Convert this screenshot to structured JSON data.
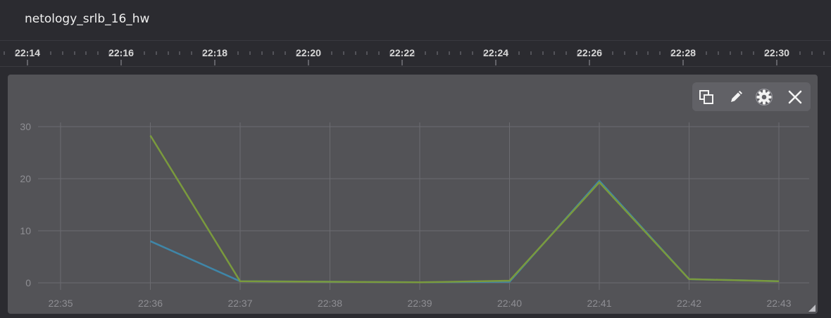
{
  "app": {
    "title": "netology_srlb_16_hw"
  },
  "timeline": {
    "ticks": [
      "22:14",
      "22:16",
      "22:18",
      "22:20",
      "22:22",
      "22:24",
      "22:26",
      "22:28",
      "22:30"
    ]
  },
  "toolbar": {
    "buttons": [
      {
        "name": "duplicate-icon"
      },
      {
        "name": "edit-icon"
      },
      {
        "name": "settings-icon"
      },
      {
        "name": "close-icon"
      }
    ]
  },
  "colors": {
    "series_a": "#7a9a3d",
    "series_b": "#3f86a8",
    "grid": "#6b6b70",
    "axis_text": "#8e8e93"
  },
  "chart_data": {
    "type": "line",
    "x": [
      "22:35",
      "22:36",
      "22:37",
      "22:38",
      "22:39",
      "22:40",
      "22:41",
      "22:42",
      "22:43"
    ],
    "y_ticks": [
      "0",
      "10",
      "20",
      "30"
    ],
    "ylim": [
      0,
      30
    ],
    "grid": true,
    "series": [
      {
        "values": [
          null,
          8,
          0.3,
          0.2,
          0.1,
          0.2,
          19.6,
          0.7,
          0.3
        ]
      },
      {
        "values": [
          null,
          28.3,
          0.3,
          0.2,
          0.1,
          0.4,
          19.3,
          0.7,
          0.3
        ]
      }
    ]
  }
}
